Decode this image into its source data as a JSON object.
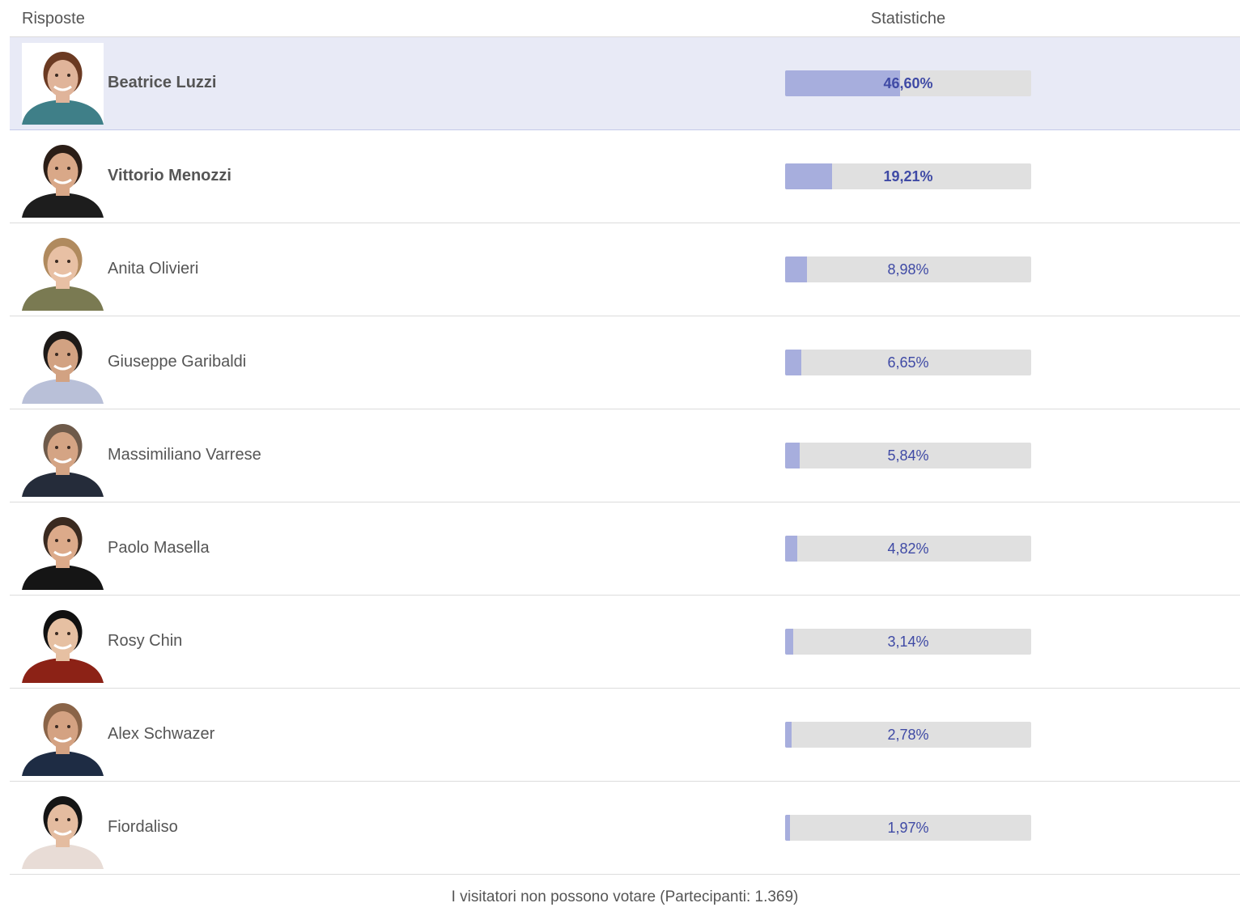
{
  "header": {
    "answers_label": "Risposte",
    "stats_label": "Statistiche"
  },
  "colors": {
    "bar_fill": "#a7aedd",
    "bar_track": "#e0e0e0",
    "percent_text": "#3f4aa5",
    "winner_bg": "#e8eaf6"
  },
  "rows": [
    {
      "name": "Beatrice Luzzi",
      "percent_label": "46,60%",
      "value": 46.6,
      "bold": true,
      "highlight": true,
      "avatar_icon": "person-photo-icon",
      "skin": "#e0b49a",
      "hair": "#6b3a22",
      "cloth": "#3f7f88"
    },
    {
      "name": "Vittorio Menozzi",
      "percent_label": "19,21%",
      "value": 19.21,
      "bold": true,
      "highlight": false,
      "avatar_icon": "person-photo-icon",
      "skin": "#d9a888",
      "hair": "#2b1e17",
      "cloth": "#1d1d1d"
    },
    {
      "name": "Anita Olivieri",
      "percent_label": "8,98%",
      "value": 8.98,
      "bold": false,
      "highlight": false,
      "avatar_icon": "person-photo-icon",
      "skin": "#e8c0a4",
      "hair": "#b08a5e",
      "cloth": "#7a7a52"
    },
    {
      "name": "Giuseppe Garibaldi",
      "percent_label": "6,65%",
      "value": 6.65,
      "bold": false,
      "highlight": false,
      "avatar_icon": "person-photo-icon",
      "skin": "#d2a282",
      "hair": "#1e1a18",
      "cloth": "#b9c0d8"
    },
    {
      "name": "Massimiliano Varrese",
      "percent_label": "5,84%",
      "value": 5.84,
      "bold": false,
      "highlight": false,
      "avatar_icon": "person-photo-icon",
      "skin": "#d4a484",
      "hair": "#6e5a4a",
      "cloth": "#252c3a"
    },
    {
      "name": "Paolo Masella",
      "percent_label": "4,82%",
      "value": 4.82,
      "bold": false,
      "highlight": false,
      "avatar_icon": "person-photo-icon",
      "skin": "#dcaa8a",
      "hair": "#3a2a20",
      "cloth": "#151515"
    },
    {
      "name": "Rosy Chin",
      "percent_label": "3,14%",
      "value": 3.14,
      "bold": false,
      "highlight": false,
      "avatar_icon": "person-photo-icon",
      "skin": "#e6c0a2",
      "hair": "#111111",
      "cloth": "#8c2216"
    },
    {
      "name": "Alex Schwazer",
      "percent_label": "2,78%",
      "value": 2.78,
      "bold": false,
      "highlight": false,
      "avatar_icon": "person-photo-icon",
      "skin": "#d4a282",
      "hair": "#8a6448",
      "cloth": "#1e2c44"
    },
    {
      "name": "Fiordaliso",
      "percent_label": "1,97%",
      "value": 1.97,
      "bold": false,
      "highlight": false,
      "avatar_icon": "person-photo-icon",
      "skin": "#e4bca0",
      "hair": "#151515",
      "cloth": "#e8dcd6"
    }
  ],
  "footer": {
    "text": "I visitatori non possono votare (Partecipanti: 1.369)"
  }
}
